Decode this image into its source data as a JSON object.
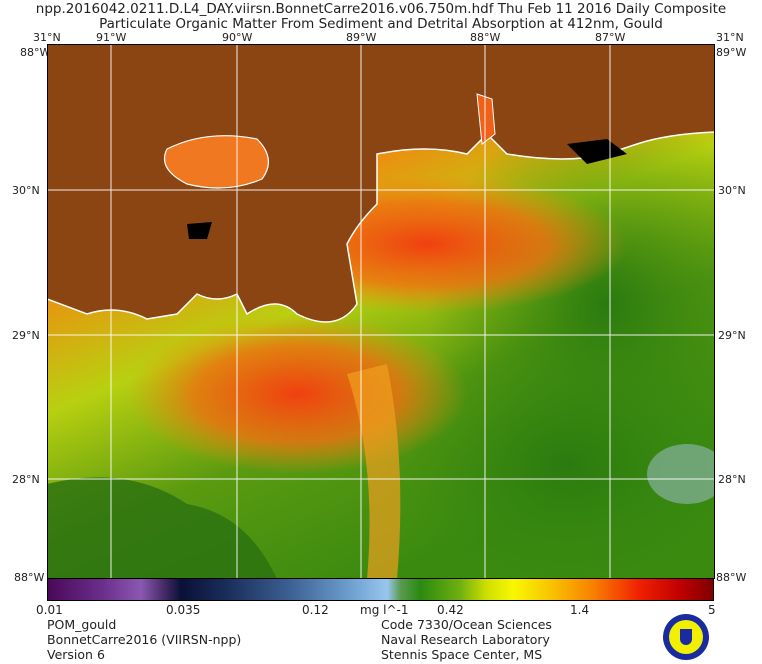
{
  "header": {
    "line1": "npp.2016042.0211.D.L4_DAY.viirsn.BonnetCarre2016.v06.750m.hdf     Thu Feb 11 2016 Daily Composite",
    "line2": "Particulate Organic Matter From Sediment and Detrital Absorption at 412nm, Gould"
  },
  "map": {
    "lon_labels": [
      "91°W",
      "90°W",
      "89°W",
      "88°W",
      "87°W"
    ],
    "lat_labels": [
      "30°N",
      "29°N",
      "28°N"
    ],
    "corner_labels": {
      "top_left": "31°N",
      "top_left_lon": "88°W",
      "top_right": "31°N",
      "top_right_lon": "89°W",
      "bottom_left": "88°W",
      "bottom_right": "88°W"
    },
    "colors": {
      "land": "#8b4513",
      "coast": "#ffffff",
      "grid": "#ffffff"
    }
  },
  "colorbar": {
    "ticks": [
      "0.01",
      "0.035",
      "0.12",
      "0.42",
      "1.4",
      "5"
    ],
    "units": "mg l^-1"
  },
  "footer": {
    "left": [
      "POM_gould",
      "BonnetCarre2016 (VIIRSN-npp)",
      "Version 6"
    ],
    "right": [
      "Code 7330/Ocean Sciences",
      "Naval Research Laboratory",
      "Stennis Space Center, MS"
    ]
  }
}
